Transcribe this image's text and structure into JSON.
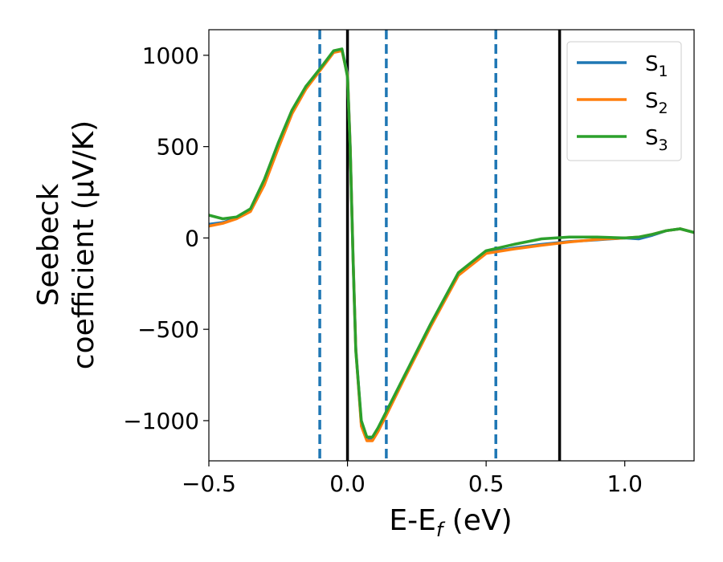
{
  "chart_data": {
    "type": "line",
    "xlabel": "E-E",
    "xlabel_sub": "f",
    "xlabel_unit": " (eV)",
    "ylabel_line1": "Seebeck",
    "ylabel_line2": "coefficient  (μV/K)",
    "xlim": [
      -0.5,
      1.25
    ],
    "ylim": [
      -1220,
      1140
    ],
    "xticks": [
      {
        "value": -0.5,
        "label": "−0.5"
      },
      {
        "value": 0.0,
        "label": "0.0"
      },
      {
        "value": 0.5,
        "label": "0.5"
      },
      {
        "value": 1.0,
        "label": "1.0"
      }
    ],
    "yticks": [
      {
        "value": -1000,
        "label": "−1000"
      },
      {
        "value": -500,
        "label": "−500"
      },
      {
        "value": 0,
        "label": "0"
      },
      {
        "value": 500,
        "label": "500"
      },
      {
        "value": 1000,
        "label": "1000"
      }
    ],
    "grid": false,
    "legend_position": "top-right",
    "vlines": [
      {
        "x": -0.1,
        "style": "dashed",
        "color": "#1f77b4"
      },
      {
        "x": 0.0,
        "style": "solid",
        "color": "#000000"
      },
      {
        "x": 0.14,
        "style": "dashed",
        "color": "#1f77b4"
      },
      {
        "x": 0.535,
        "style": "dashed",
        "color": "#1f77b4"
      },
      {
        "x": 0.765,
        "style": "solid",
        "color": "#000000"
      }
    ],
    "series": [
      {
        "name": "S",
        "sub": "1",
        "color": "#1f77b4",
        "x": [
          -0.5,
          -0.45,
          -0.4,
          -0.35,
          -0.3,
          -0.25,
          -0.2,
          -0.15,
          -0.1,
          -0.05,
          -0.02,
          0.0,
          0.01,
          0.02,
          0.03,
          0.05,
          0.07,
          0.09,
          0.11,
          0.14,
          0.2,
          0.3,
          0.4,
          0.5,
          0.6,
          0.7,
          0.8,
          0.9,
          1.0,
          1.05,
          1.1,
          1.15,
          1.2,
          1.25
        ],
        "y": [
          75,
          85,
          110,
          150,
          300,
          500,
          690,
          820,
          920,
          1020,
          1030,
          900,
          500,
          -100,
          -600,
          -1020,
          -1100,
          -1100,
          -1050,
          -960,
          -780,
          -480,
          -200,
          -80,
          -55,
          -35,
          -20,
          -10,
          0,
          -5,
          15,
          40,
          50,
          30
        ]
      },
      {
        "name": "S",
        "sub": "2",
        "color": "#ff7f0e",
        "x": [
          -0.5,
          -0.45,
          -0.4,
          -0.35,
          -0.3,
          -0.25,
          -0.2,
          -0.15,
          -0.1,
          -0.05,
          -0.02,
          0.0,
          0.01,
          0.02,
          0.03,
          0.05,
          0.07,
          0.09,
          0.11,
          0.14,
          0.2,
          0.3,
          0.4,
          0.5,
          0.6,
          0.7,
          0.8,
          0.9,
          1.0,
          1.05,
          1.1,
          1.15,
          1.2,
          1.25
        ],
        "y": [
          65,
          80,
          105,
          145,
          290,
          490,
          680,
          815,
          915,
          1015,
          1025,
          890,
          490,
          -110,
          -610,
          -1030,
          -1110,
          -1110,
          -1060,
          -970,
          -785,
          -485,
          -205,
          -85,
          -60,
          -40,
          -22,
          -8,
          0,
          5,
          20,
          40,
          50,
          30
        ]
      },
      {
        "name": "S",
        "sub": "3",
        "color": "#2ca02c",
        "x": [
          -0.5,
          -0.45,
          -0.4,
          -0.35,
          -0.3,
          -0.25,
          -0.2,
          -0.15,
          -0.1,
          -0.05,
          -0.02,
          0.0,
          0.01,
          0.02,
          0.03,
          0.05,
          0.07,
          0.09,
          0.11,
          0.14,
          0.2,
          0.3,
          0.4,
          0.5,
          0.6,
          0.7,
          0.8,
          0.9,
          1.0,
          1.05,
          1.1,
          1.15,
          1.2,
          1.25
        ],
        "y": [
          125,
          105,
          115,
          160,
          320,
          520,
          700,
          830,
          925,
          1025,
          1035,
          880,
          480,
          -120,
          -620,
          -1000,
          -1090,
          -1090,
          -1040,
          -950,
          -770,
          -470,
          -190,
          -70,
          -35,
          -5,
          5,
          5,
          0,
          5,
          20,
          40,
          50,
          30
        ]
      }
    ]
  }
}
